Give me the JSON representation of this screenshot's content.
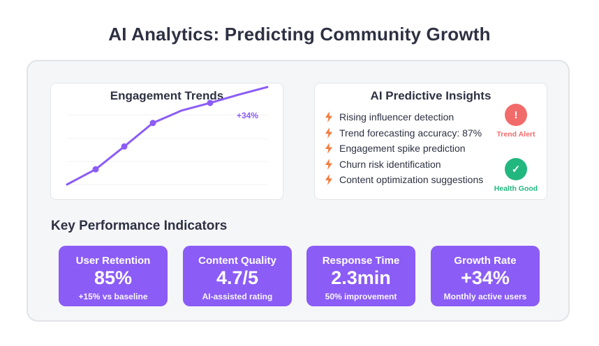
{
  "page": {
    "title": "AI Analytics: Predicting Community Growth"
  },
  "trends": {
    "title": "Engagement Trends",
    "annotation": "+34%",
    "line_color": "#8b5cf6"
  },
  "chart_data": {
    "type": "line",
    "title": "Engagement Trends",
    "xlabel": "",
    "ylabel": "",
    "grid": true,
    "series": [
      {
        "values": [
          0,
          22,
          55,
          89,
          107,
          118,
          130,
          141
        ]
      }
    ],
    "markers_at": [
      1,
      2,
      3,
      5
    ],
    "annotations": [
      "+34%"
    ]
  },
  "insights": {
    "title": "AI Predictive Insights",
    "icon": "lightning-bolt-icon",
    "bolt_color": "#f47a3c",
    "items": [
      "Rising influencer detection",
      "Trend forecasting accuracy: 87%",
      "Engagement spike prediction",
      "Churn risk identification",
      "Content optimization suggestions"
    ],
    "alert": {
      "symbol": "!",
      "label": "Trend Alert",
      "color": "#f26b6b"
    },
    "health": {
      "symbol": "✓",
      "label": "Health Good",
      "color": "#22b77f"
    }
  },
  "kpi": {
    "heading": "Key Performance Indicators",
    "color": "#8b5cf6",
    "cards": [
      {
        "label": "User Retention",
        "value": "85%",
        "note": "+15% vs baseline"
      },
      {
        "label": "Content Quality",
        "value": "4.7/5",
        "note": "AI-assisted rating"
      },
      {
        "label": "Response Time",
        "value": "2.3min",
        "note": "50% improvement"
      },
      {
        "label": "Growth Rate",
        "value": "+34%",
        "note": "Monthly active users"
      }
    ]
  }
}
